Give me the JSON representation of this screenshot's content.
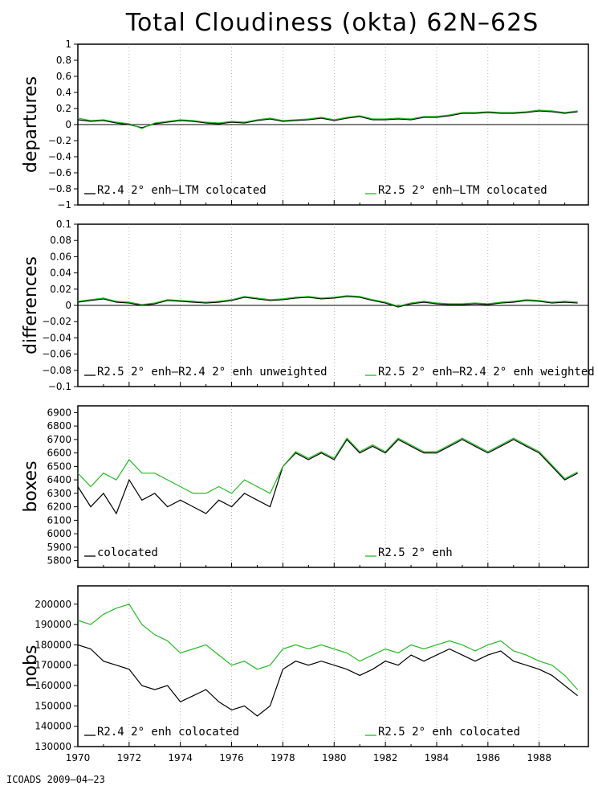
{
  "title": "Total Cloudiness (okta) 62N–62S",
  "footer": "ICOADS 2009–04–23",
  "colors": {
    "black": "#000000",
    "green": "#22bb22",
    "grid": "#888888"
  },
  "chart_data": [
    {
      "type": "line",
      "ylabel": "departures",
      "ylim": [
        -1,
        1
      ],
      "yticks": [
        -1,
        -0.8,
        -0.6,
        -0.4,
        -0.2,
        0,
        0.2,
        0.4,
        0.6,
        0.8,
        1
      ],
      "ytick_labels": [
        "−1",
        "−0.8",
        "−0.6",
        "−0.4",
        "−0.2",
        "0",
        "0.2",
        "0.4",
        "0.6",
        "0.8",
        "1"
      ],
      "xlim": [
        1970,
        1989.92
      ],
      "zero_line": true,
      "legend": [
        {
          "label": "R2.4 2° enh–LTM colocated",
          "color": "black"
        },
        {
          "label": "R2.5 2° enh–LTM colocated",
          "color": "green"
        }
      ],
      "series": [
        {
          "color": "black",
          "x_start": 1970,
          "x_step": 0.5,
          "values": [
            0.06,
            0.04,
            0.05,
            0.02,
            0.0,
            -0.04,
            0.01,
            0.03,
            0.05,
            0.04,
            0.02,
            0.01,
            0.03,
            0.02,
            0.05,
            0.07,
            0.04,
            0.05,
            0.06,
            0.08,
            0.05,
            0.08,
            0.1,
            0.06,
            0.06,
            0.07,
            0.06,
            0.09,
            0.09,
            0.11,
            0.14,
            0.14,
            0.15,
            0.14,
            0.14,
            0.15,
            0.17,
            0.16,
            0.14,
            0.16
          ]
        },
        {
          "color": "green",
          "x_start": 1970,
          "x_step": 0.5,
          "values": [
            0.08,
            0.05,
            0.06,
            0.03,
            0.01,
            -0.05,
            0.02,
            0.04,
            0.06,
            0.05,
            0.03,
            0.02,
            0.04,
            0.03,
            0.06,
            0.08,
            0.05,
            0.06,
            0.07,
            0.09,
            0.06,
            0.09,
            0.11,
            0.07,
            0.07,
            0.08,
            0.07,
            0.1,
            0.1,
            0.12,
            0.15,
            0.15,
            0.16,
            0.15,
            0.15,
            0.16,
            0.18,
            0.17,
            0.15,
            0.17
          ]
        }
      ]
    },
    {
      "type": "line",
      "ylabel": "differences",
      "ylim": [
        -0.1,
        0.1
      ],
      "yticks": [
        -0.1,
        -0.08,
        -0.06,
        -0.04,
        -0.02,
        0,
        0.02,
        0.04,
        0.06,
        0.08,
        0.1
      ],
      "ytick_labels": [
        "−0.1",
        "−0.08",
        "−0.06",
        "−0.04",
        "−0.02",
        "0",
        "0.02",
        "0.04",
        "0.06",
        "0.08",
        "0.1"
      ],
      "xlim": [
        1970,
        1989.92
      ],
      "zero_line": true,
      "legend": [
        {
          "label": "R2.5 2° enh–R2.4 2° enh unweighted",
          "color": "black"
        },
        {
          "label": "R2.5 2° enh–R2.4 2° enh weighted",
          "color": "green"
        }
      ],
      "series": [
        {
          "color": "black",
          "x_start": 1970,
          "x_step": 0.5,
          "values": [
            0.004,
            0.006,
            0.008,
            0.004,
            0.003,
            0.0,
            0.002,
            0.006,
            0.005,
            0.004,
            0.003,
            0.004,
            0.006,
            0.01,
            0.008,
            0.006,
            0.007,
            0.009,
            0.01,
            0.008,
            0.009,
            0.011,
            0.01,
            0.006,
            0.003,
            -0.002,
            0.002,
            0.004,
            0.002,
            0.001,
            0.001,
            0.002,
            0.001,
            0.003,
            0.004,
            0.006,
            0.005,
            0.003,
            0.004,
            0.003
          ]
        },
        {
          "color": "green",
          "x_start": 1970,
          "x_step": 0.5,
          "values": [
            0.005,
            0.007,
            0.009,
            0.005,
            0.004,
            0.001,
            0.003,
            0.007,
            0.006,
            0.005,
            0.004,
            0.005,
            0.007,
            0.011,
            0.009,
            0.007,
            0.008,
            0.01,
            0.011,
            0.009,
            0.01,
            0.012,
            0.011,
            0.007,
            0.004,
            -0.001,
            0.003,
            0.005,
            0.003,
            0.002,
            0.002,
            0.003,
            0.002,
            0.004,
            0.005,
            0.007,
            0.006,
            0.004,
            0.005,
            0.004
          ]
        }
      ]
    },
    {
      "type": "line",
      "ylabel": "boxes",
      "ylim": [
        5750,
        6950
      ],
      "yticks": [
        5800,
        5900,
        6000,
        6100,
        6200,
        6300,
        6400,
        6500,
        6600,
        6700,
        6800,
        6900
      ],
      "ytick_labels": [
        "5800",
        "5900",
        "6000",
        "6100",
        "6200",
        "6300",
        "6400",
        "6500",
        "6600",
        "6700",
        "6800",
        "6900"
      ],
      "xlim": [
        1970,
        1989.92
      ],
      "zero_line": false,
      "legend": [
        {
          "label": "colocated",
          "color": "black"
        },
        {
          "label": "R2.5 2° enh",
          "color": "green"
        }
      ],
      "series": [
        {
          "color": "black",
          "x_start": 1970,
          "x_step": 0.5,
          "values": [
            6350,
            6200,
            6300,
            6150,
            6400,
            6250,
            6300,
            6200,
            6250,
            6200,
            6150,
            6250,
            6200,
            6300,
            6250,
            6200,
            6500,
            6600,
            6550,
            6600,
            6550,
            6700,
            6600,
            6650,
            6600,
            6700,
            6650,
            6600,
            6600,
            6650,
            6700,
            6650,
            6600,
            6650,
            6700,
            6650,
            6600,
            6500,
            6400,
            6450
          ]
        },
        {
          "color": "green",
          "x_start": 1970,
          "x_step": 0.5,
          "values": [
            6450,
            6350,
            6450,
            6400,
            6550,
            6450,
            6450,
            6400,
            6350,
            6300,
            6300,
            6350,
            6300,
            6400,
            6350,
            6300,
            6500,
            6610,
            6560,
            6610,
            6560,
            6710,
            6610,
            6660,
            6610,
            6710,
            6660,
            6610,
            6610,
            6660,
            6710,
            6660,
            6610,
            6660,
            6710,
            6660,
            6610,
            6510,
            6410,
            6460
          ]
        }
      ]
    },
    {
      "type": "line",
      "ylabel": "nobs",
      "ylim": [
        130000,
        209000
      ],
      "yticks": [
        130000,
        140000,
        150000,
        160000,
        170000,
        180000,
        190000,
        200000
      ],
      "ytick_labels": [
        "130000",
        "140000",
        "150000",
        "160000",
        "170000",
        "180000",
        "190000",
        "200000"
      ],
      "xlim": [
        1970,
        1989.92
      ],
      "xticks": [
        1970,
        1972,
        1974,
        1976,
        1978,
        1980,
        1982,
        1984,
        1986,
        1988
      ],
      "xtick_labels": [
        "1970",
        "1972",
        "1974",
        "1976",
        "1978",
        "1980",
        "1982",
        "1984",
        "1986",
        "1988"
      ],
      "zero_line": false,
      "legend": [
        {
          "label": "R2.4 2° enh colocated",
          "color": "black"
        },
        {
          "label": "R2.5 2° enh colocated",
          "color": "green"
        }
      ],
      "series": [
        {
          "color": "black",
          "x_start": 1970,
          "x_step": 0.5,
          "values": [
            180000,
            178000,
            172000,
            170000,
            168000,
            160000,
            158000,
            160000,
            152000,
            155000,
            158000,
            152000,
            148000,
            150000,
            145000,
            150000,
            168000,
            172000,
            170000,
            172000,
            170000,
            168000,
            165000,
            168000,
            172000,
            170000,
            175000,
            172000,
            175000,
            178000,
            175000,
            172000,
            175000,
            177000,
            172000,
            170000,
            168000,
            165000,
            160000,
            155000
          ]
        },
        {
          "color": "green",
          "x_start": 1970,
          "x_step": 0.5,
          "values": [
            192000,
            190000,
            195000,
            198000,
            200000,
            190000,
            185000,
            182000,
            176000,
            178000,
            180000,
            175000,
            170000,
            172000,
            168000,
            170000,
            178000,
            180000,
            178000,
            180000,
            178000,
            176000,
            172000,
            175000,
            178000,
            176000,
            180000,
            178000,
            180000,
            182000,
            180000,
            177000,
            180000,
            182000,
            177000,
            175000,
            172000,
            170000,
            165000,
            158000
          ]
        }
      ]
    }
  ]
}
